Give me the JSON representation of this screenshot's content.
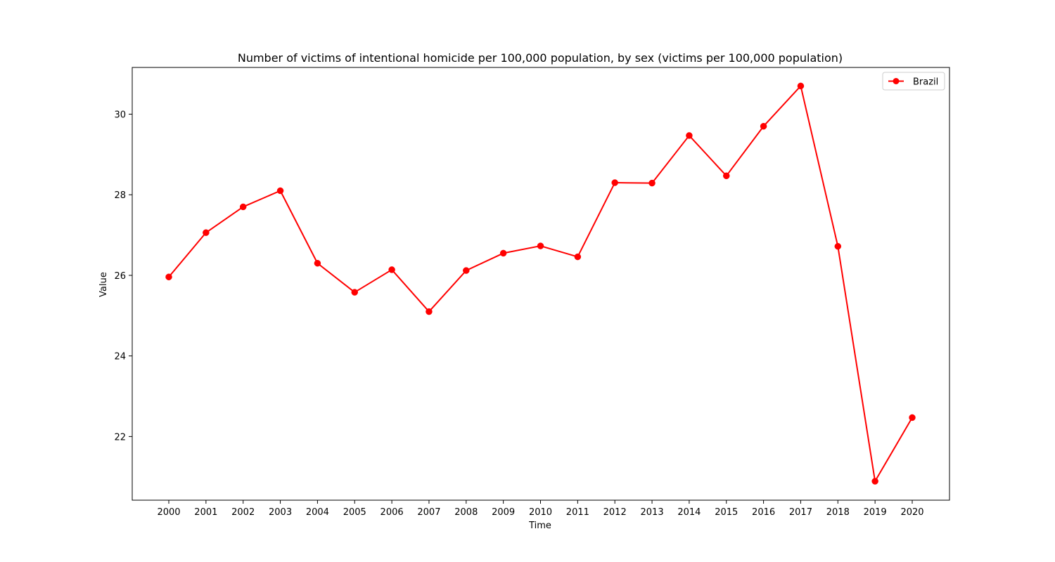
{
  "chart_data": {
    "type": "line",
    "title": "Number of victims of intentional homicide per 100,000 population, by sex (victims per 100,000 population)",
    "xlabel": "Time",
    "ylabel": "Value",
    "x": [
      "2000",
      "2001",
      "2002",
      "2003",
      "2004",
      "2005",
      "2006",
      "2007",
      "2008",
      "2009",
      "2010",
      "2011",
      "2012",
      "2013",
      "2014",
      "2015",
      "2016",
      "2017",
      "2018",
      "2019",
      "2020"
    ],
    "yticks": [
      22,
      24,
      26,
      28,
      30
    ],
    "ylim": [
      20.42,
      31.16
    ],
    "grid": false,
    "legend_position": "top-right",
    "series": [
      {
        "name": "Brazil",
        "color": "#ff0000",
        "marker": "circle",
        "values": [
          25.96,
          27.06,
          27.7,
          28.1,
          26.3,
          25.58,
          26.14,
          25.1,
          26.12,
          26.55,
          26.73,
          26.46,
          28.3,
          28.29,
          29.47,
          28.47,
          29.7,
          30.7,
          26.72,
          20.89,
          22.47
        ]
      }
    ]
  }
}
